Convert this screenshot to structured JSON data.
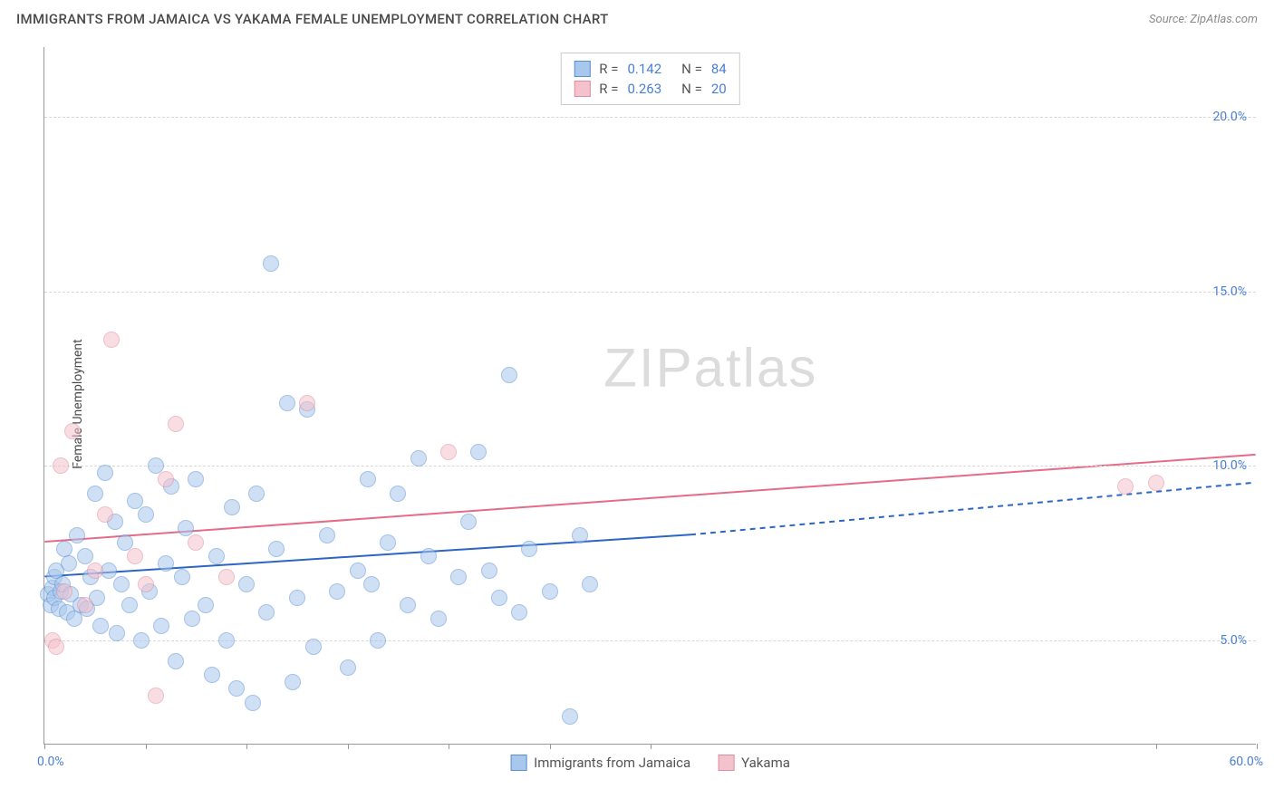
{
  "title": "IMMIGRANTS FROM JAMAICA VS YAKAMA FEMALE UNEMPLOYMENT CORRELATION CHART",
  "source": "Source: ZipAtlas.com",
  "ylabel": "Female Unemployment",
  "watermark": "ZIPatlas",
  "chart": {
    "type": "scatter",
    "xlim": [
      0,
      60
    ],
    "ylim": [
      2,
      22
    ],
    "xticks": [
      0,
      5,
      10,
      15,
      20,
      25,
      30,
      55,
      60
    ],
    "xtick_labels": {
      "0": "0.0%",
      "60": "60.0%"
    },
    "yticks": [
      5,
      10,
      15,
      20
    ],
    "ytick_labels": {
      "5": "5.0%",
      "10": "10.0%",
      "15": "15.0%",
      "20": "20.0%"
    },
    "grid_color": "#d8d8d8",
    "axis_color": "#999999",
    "tick_label_color": "#4a7fd6",
    "background_color": "#ffffff",
    "marker_radius": 9,
    "marker_opacity": 0.55,
    "marker_border_opacity": 0.9,
    "series": [
      {
        "name": "Immigrants from Jamaica",
        "fill": "#a8c7ec",
        "stroke": "#5a8fd6",
        "R": 0.142,
        "N": 84,
        "regression": {
          "x1": 0,
          "y1": 6.8,
          "x2": 32,
          "y2": 8.0,
          "x2_ext": 60,
          "y2_ext": 9.5,
          "color": "#2c66c4",
          "width": 2
        },
        "points": [
          [
            0.2,
            6.3
          ],
          [
            0.3,
            6.0
          ],
          [
            0.4,
            6.5
          ],
          [
            0.5,
            6.2
          ],
          [
            0.5,
            6.8
          ],
          [
            0.6,
            7.0
          ],
          [
            0.7,
            5.9
          ],
          [
            0.8,
            6.4
          ],
          [
            0.9,
            6.6
          ],
          [
            1.0,
            7.6
          ],
          [
            1.1,
            5.8
          ],
          [
            1.2,
            7.2
          ],
          [
            1.3,
            6.3
          ],
          [
            1.5,
            5.6
          ],
          [
            1.6,
            8.0
          ],
          [
            1.8,
            6.0
          ],
          [
            2.0,
            7.4
          ],
          [
            2.1,
            5.9
          ],
          [
            2.3,
            6.8
          ],
          [
            2.5,
            9.2
          ],
          [
            2.6,
            6.2
          ],
          [
            2.8,
            5.4
          ],
          [
            3.0,
            9.8
          ],
          [
            3.2,
            7.0
          ],
          [
            3.5,
            8.4
          ],
          [
            3.6,
            5.2
          ],
          [
            3.8,
            6.6
          ],
          [
            4.0,
            7.8
          ],
          [
            4.2,
            6.0
          ],
          [
            4.5,
            9.0
          ],
          [
            4.8,
            5.0
          ],
          [
            5.0,
            8.6
          ],
          [
            5.2,
            6.4
          ],
          [
            5.5,
            10.0
          ],
          [
            5.8,
            5.4
          ],
          [
            6.0,
            7.2
          ],
          [
            6.3,
            9.4
          ],
          [
            6.5,
            4.4
          ],
          [
            6.8,
            6.8
          ],
          [
            7.0,
            8.2
          ],
          [
            7.3,
            5.6
          ],
          [
            7.5,
            9.6
          ],
          [
            8.0,
            6.0
          ],
          [
            8.3,
            4.0
          ],
          [
            8.5,
            7.4
          ],
          [
            9.0,
            5.0
          ],
          [
            9.3,
            8.8
          ],
          [
            9.5,
            3.6
          ],
          [
            10.0,
            6.6
          ],
          [
            10.3,
            3.2
          ],
          [
            10.5,
            9.2
          ],
          [
            11.0,
            5.8
          ],
          [
            11.2,
            15.8
          ],
          [
            11.5,
            7.6
          ],
          [
            12.0,
            11.8
          ],
          [
            12.3,
            3.8
          ],
          [
            12.5,
            6.2
          ],
          [
            13.0,
            11.6
          ],
          [
            13.3,
            4.8
          ],
          [
            14.0,
            8.0
          ],
          [
            14.5,
            6.4
          ],
          [
            15.0,
            4.2
          ],
          [
            15.5,
            7.0
          ],
          [
            16.0,
            9.6
          ],
          [
            16.2,
            6.6
          ],
          [
            16.5,
            5.0
          ],
          [
            17.0,
            7.8
          ],
          [
            17.5,
            9.2
          ],
          [
            18.0,
            6.0
          ],
          [
            18.5,
            10.2
          ],
          [
            19.0,
            7.4
          ],
          [
            19.5,
            5.6
          ],
          [
            20.5,
            6.8
          ],
          [
            21.0,
            8.4
          ],
          [
            21.5,
            10.4
          ],
          [
            22.0,
            7.0
          ],
          [
            22.5,
            6.2
          ],
          [
            23.0,
            12.6
          ],
          [
            23.5,
            5.8
          ],
          [
            24.0,
            7.6
          ],
          [
            25.0,
            6.4
          ],
          [
            26.0,
            2.8
          ],
          [
            26.5,
            8.0
          ],
          [
            27.0,
            6.6
          ]
        ]
      },
      {
        "name": "Yakama",
        "fill": "#f4c2cd",
        "stroke": "#e08ba0",
        "R": 0.263,
        "N": 20,
        "regression": {
          "x1": 0,
          "y1": 7.8,
          "x2": 60,
          "y2": 10.3,
          "color": "#e56b8a",
          "width": 2
        },
        "points": [
          [
            0.4,
            5.0
          ],
          [
            0.6,
            4.8
          ],
          [
            0.8,
            10.0
          ],
          [
            1.0,
            6.4
          ],
          [
            1.4,
            11.0
          ],
          [
            2.0,
            6.0
          ],
          [
            2.5,
            7.0
          ],
          [
            3.0,
            8.6
          ],
          [
            3.3,
            13.6
          ],
          [
            4.5,
            7.4
          ],
          [
            5.0,
            6.6
          ],
          [
            5.5,
            3.4
          ],
          [
            6.0,
            9.6
          ],
          [
            6.5,
            11.2
          ],
          [
            7.5,
            7.8
          ],
          [
            9.0,
            6.8
          ],
          [
            13.0,
            11.8
          ],
          [
            20.0,
            10.4
          ],
          [
            53.5,
            9.4
          ],
          [
            55.0,
            9.5
          ]
        ]
      }
    ],
    "legend_top": {
      "border_color": "#cccccc",
      "rows": [
        {
          "swatch_fill": "#a8c7ec",
          "swatch_stroke": "#5a8fd6",
          "r_label": "R =",
          "r_val": "0.142",
          "n_label": "N =",
          "n_val": "84"
        },
        {
          "swatch_fill": "#f4c2cd",
          "swatch_stroke": "#e08ba0",
          "r_label": "R =",
          "r_val": "0.263",
          "n_label": "N =",
          "n_val": "20"
        }
      ]
    },
    "legend_bottom": [
      {
        "swatch_fill": "#a8c7ec",
        "swatch_stroke": "#5a8fd6",
        "label": "Immigrants from Jamaica"
      },
      {
        "swatch_fill": "#f4c2cd",
        "swatch_stroke": "#e08ba0",
        "label": "Yakama"
      }
    ]
  }
}
